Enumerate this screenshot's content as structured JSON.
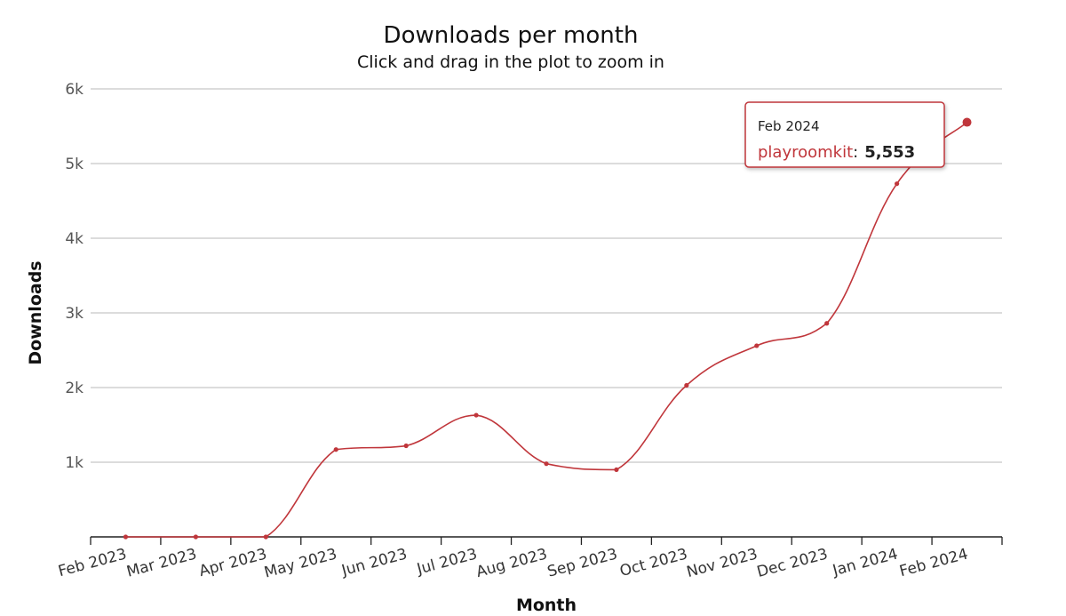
{
  "chart_data": {
    "type": "line",
    "title": "Downloads per month",
    "subtitle": "Click and drag in the plot to zoom in",
    "xlabel": "Month",
    "ylabel": "Downloads",
    "ylim": [
      0,
      6000
    ],
    "yticks": [
      {
        "value": 1000,
        "label": "1k"
      },
      {
        "value": 2000,
        "label": "2k"
      },
      {
        "value": 3000,
        "label": "3k"
      },
      {
        "value": 4000,
        "label": "4k"
      },
      {
        "value": 5000,
        "label": "5k"
      },
      {
        "value": 6000,
        "label": "6k"
      }
    ],
    "categories": [
      "Feb 2023",
      "Mar 2023",
      "Apr 2023",
      "May 2023",
      "Jun 2023",
      "Jul 2023",
      "Aug 2023",
      "Sep 2023",
      "Oct 2023",
      "Nov 2023",
      "Dec 2023",
      "Jan 2024",
      "Feb 2024"
    ],
    "series": [
      {
        "name": "playroomkit",
        "color": "#c0363b",
        "values": [
          0,
          0,
          0,
          1170,
          1220,
          1630,
          980,
          900,
          2030,
          2560,
          2860,
          4730,
          5553
        ]
      }
    ],
    "grid": true,
    "legend": "none"
  },
  "tooltip": {
    "date": "Feb 2024",
    "series_label": "playroomkit",
    "separator": ":",
    "value": "5,553"
  }
}
